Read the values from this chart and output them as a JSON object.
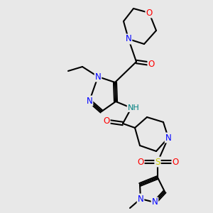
{
  "bg_color": "#e8e8e8",
  "atom_colors": {
    "C": "#000000",
    "N": "#0000ff",
    "O": "#ff0000",
    "S": "#cccc00",
    "H": "#008080"
  },
  "figsize": [
    3.0,
    3.0
  ],
  "dpi": 100,
  "lw": 1.5,
  "fs": 8.5
}
